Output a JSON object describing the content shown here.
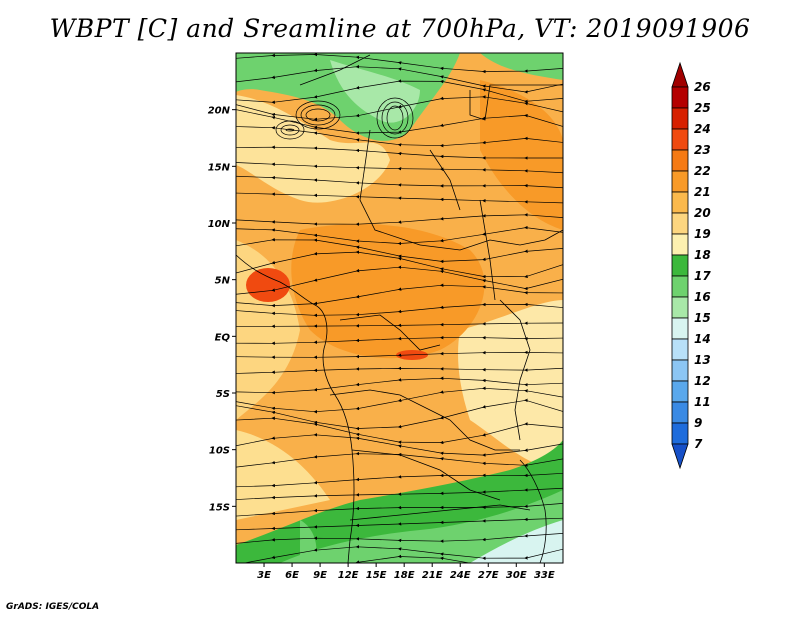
{
  "title": "WBPT [C] and Sreamline at 700hPa, VT: 2019091906",
  "credit": "GrADS: IGES/COLA",
  "map": {
    "lon_range": [
      0,
      35
    ],
    "lat_range": [
      -20,
      25
    ],
    "lon_ticks": [
      "3E",
      "6E",
      "9E",
      "12E",
      "15E",
      "18E",
      "21E",
      "24E",
      "27E",
      "30E",
      "33E"
    ],
    "lon_tick_values": [
      3,
      6,
      9,
      12,
      15,
      18,
      21,
      24,
      27,
      30,
      33
    ],
    "lat_ticks": [
      "20N",
      "15N",
      "10N",
      "5N",
      "EQ",
      "5S",
      "10S",
      "15S"
    ],
    "lat_tick_values": [
      20,
      15,
      10,
      5,
      0,
      -5,
      -10,
      -15
    ]
  },
  "colorbar": {
    "labels": [
      "26",
      "25",
      "24",
      "23",
      "22",
      "21",
      "20",
      "19",
      "18",
      "17",
      "16",
      "15",
      "14",
      "13",
      "12",
      "11",
      "9",
      "7"
    ],
    "colors": [
      "#b40000",
      "#d72000",
      "#f04a10",
      "#f57a14",
      "#f89a28",
      "#fbb94c",
      "#fdd680",
      "#fdf0b0",
      "#3cb83c",
      "#6ed26e",
      "#a8e8a8",
      "#d8f4f0",
      "#b8e0f8",
      "#8cc6f4",
      "#5aa8ec",
      "#3a8ae4",
      "#1e6cdc"
    ],
    "top_color": "#a00000",
    "bottom_color": "#1650c8"
  }
}
